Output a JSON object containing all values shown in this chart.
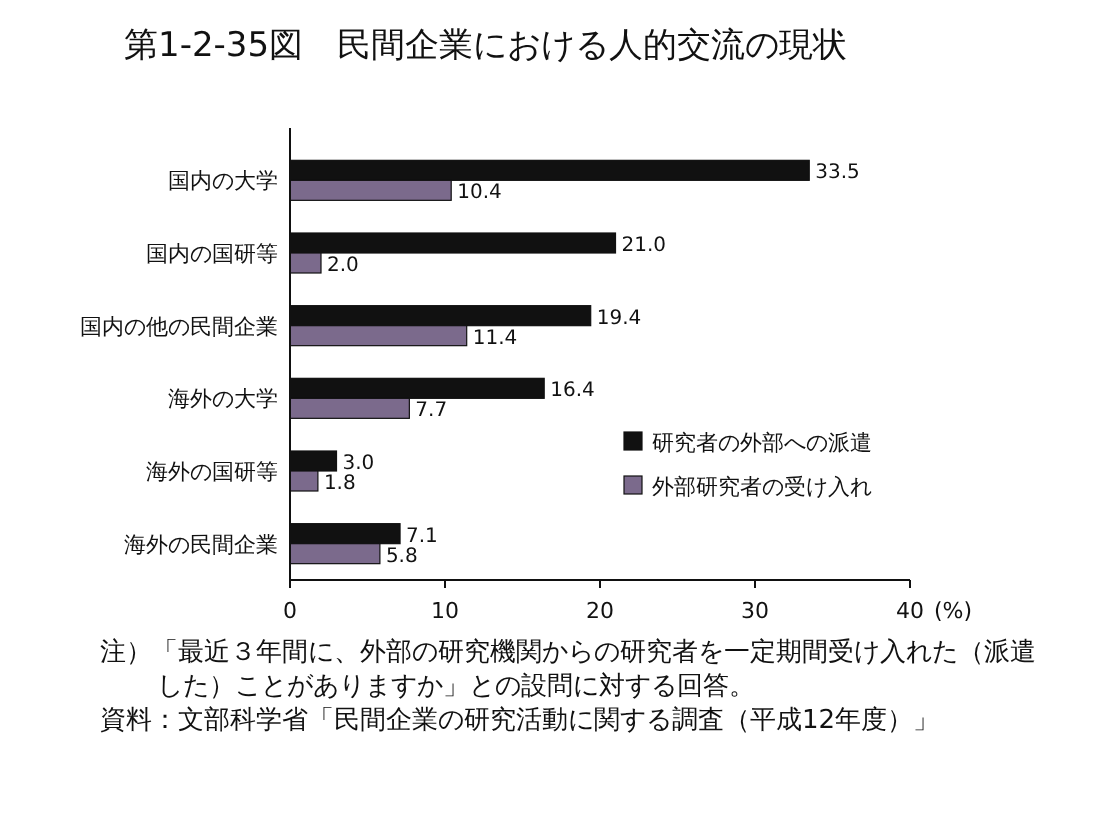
{
  "chart_data": {
    "type": "bar",
    "orientation": "horizontal",
    "title": "第1-2-35図　民間企業における人的交流の現状",
    "xlabel": "(%)",
    "categories": [
      "国内の大学",
      "国内の国研等",
      "国内の他の民間企業",
      "海外の大学",
      "海外の国研等",
      "海外の民間企業"
    ],
    "series": [
      {
        "name": "研究者の外部への派遣",
        "color": "#111111",
        "values": [
          33.5,
          21.0,
          19.4,
          16.4,
          3.0,
          7.1
        ],
        "value_labels": [
          "33.5",
          "21.0",
          "19.4",
          "16.4",
          "3.0",
          "7.1"
        ]
      },
      {
        "name": "外部研究者の受け入れ",
        "color": "#7b6a8c",
        "values": [
          10.4,
          2.0,
          11.4,
          7.7,
          1.8,
          5.8
        ],
        "value_labels": [
          "10.4",
          "2.0",
          "11.4",
          "7.7",
          "1.8",
          "5.8"
        ]
      }
    ],
    "xlim": [
      0,
      40
    ],
    "xticks": [
      0,
      10,
      20,
      30,
      40
    ],
    "legend": "right",
    "annotations": [
      "注）「最近３年間に、外部の研究機関からの研究者を一定期間受け入れた（派遣した）ことがありますか」との設問に対する回答。",
      "資料：文部科学省「民間企業の研究活動に関する調査（平成12年度）」"
    ]
  }
}
